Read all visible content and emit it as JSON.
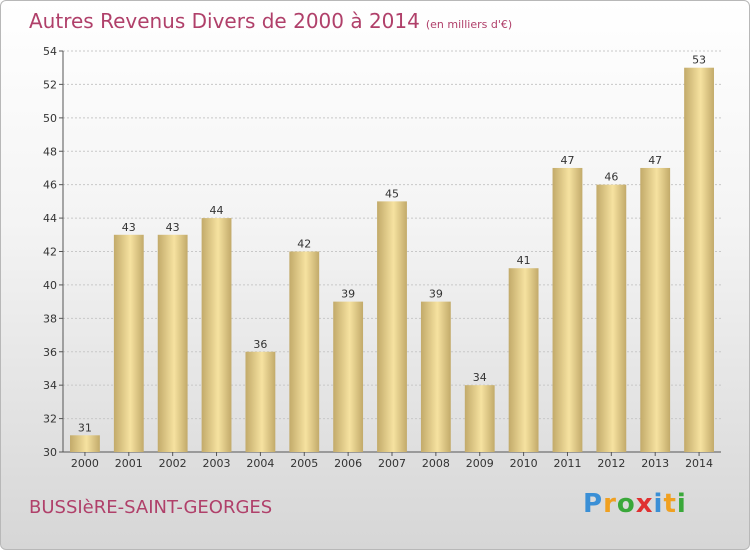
{
  "title": "Autres Revenus Divers de 2000 à 2014",
  "unit": "(en milliers d'€)",
  "commune": "BUSSIèRE-SAINT-GEORGES",
  "logo": {
    "text": "Proxiti",
    "letter_colors": [
      "#3a8fd6",
      "#f0a020",
      "#3aa83a",
      "#e03030",
      "#3a8fd6",
      "#f0a020",
      "#3aa83a"
    ]
  },
  "colors": {
    "title": "#b0406a",
    "bar_light": "#f6e2a0",
    "bar_dark": "#c2aa6a",
    "grid": "#c8c8c8"
  },
  "chart_data": {
    "type": "bar",
    "title": "Autres Revenus Divers de 2000 à 2014",
    "categories": [
      "2000",
      "2001",
      "2002",
      "2003",
      "2004",
      "2005",
      "2006",
      "2007",
      "2008",
      "2009",
      "2010",
      "2011",
      "2012",
      "2013",
      "2014"
    ],
    "values": [
      31,
      43,
      43,
      44,
      36,
      42,
      39,
      45,
      39,
      34,
      41,
      47,
      46,
      47,
      53
    ],
    "ylim": [
      30,
      54
    ],
    "yticks": [
      30,
      32,
      34,
      36,
      38,
      40,
      42,
      44,
      46,
      48,
      50,
      52,
      54
    ],
    "grid": true,
    "xlabel": "",
    "ylabel": ""
  }
}
